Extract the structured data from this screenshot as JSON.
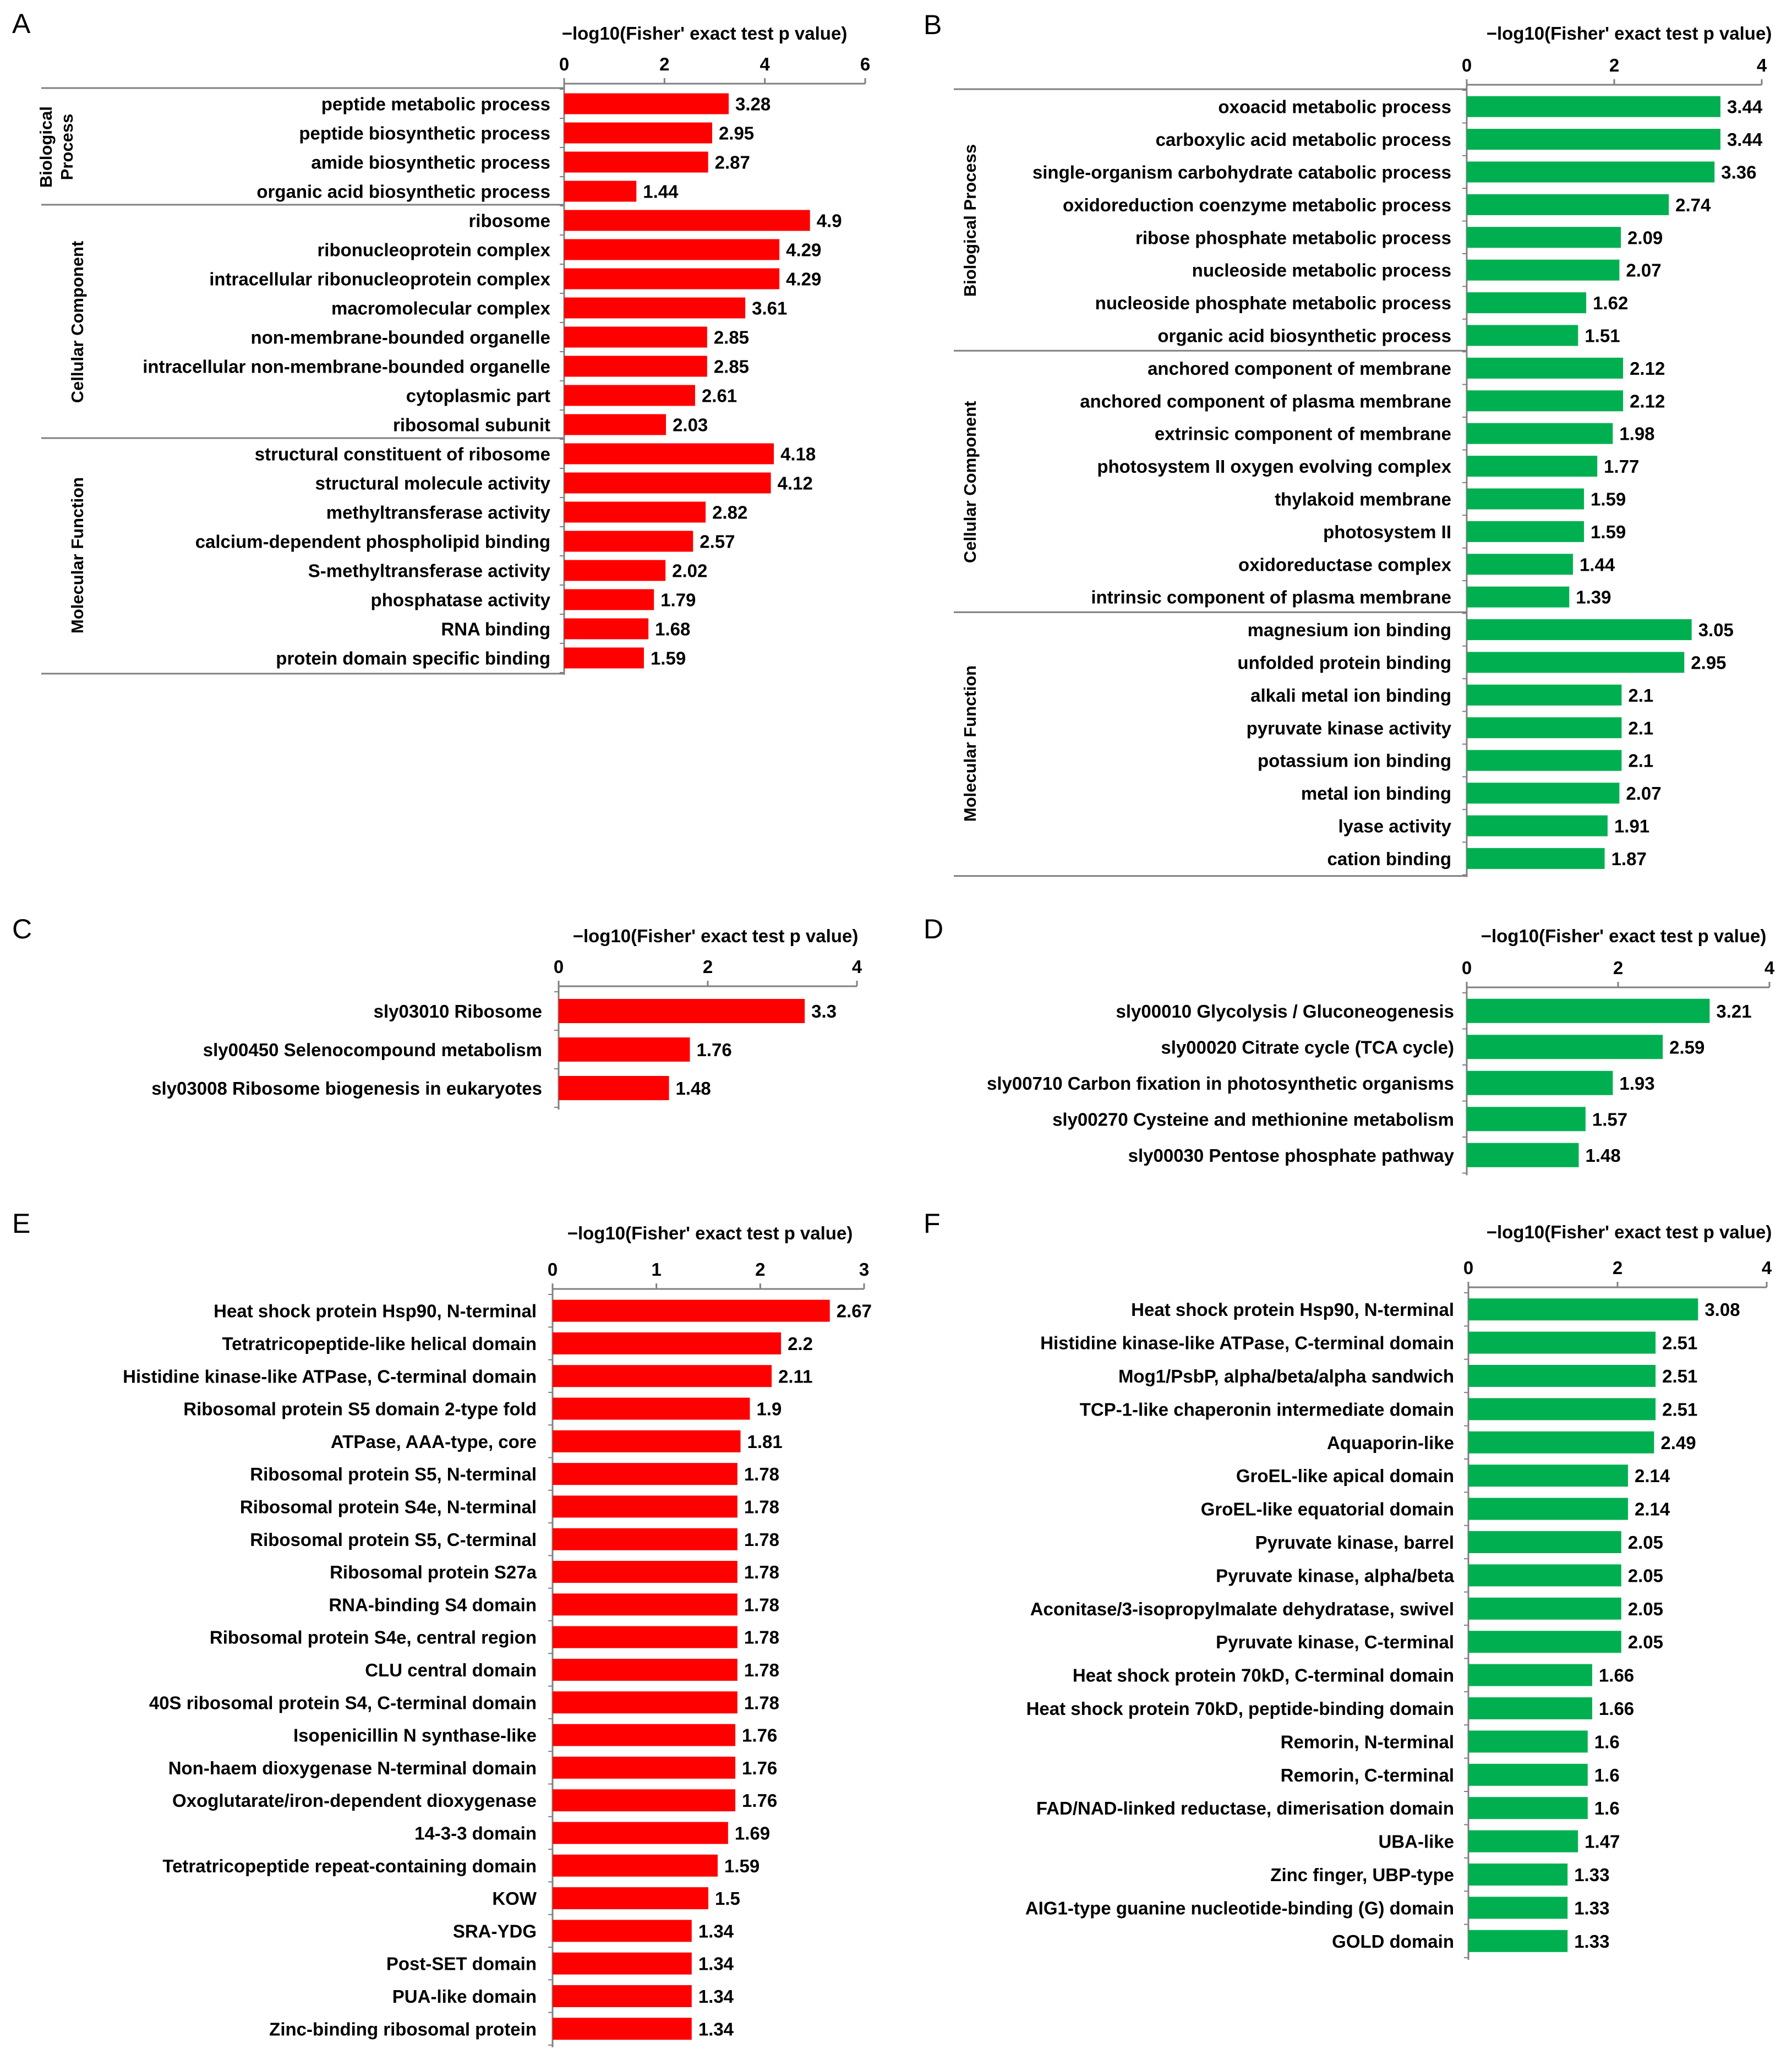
{
  "chart_data": [
    {
      "panel": "A",
      "type": "bar",
      "orientation": "horizontal",
      "xlabel": "−log10(Fisher' exact test p value)",
      "xlim": [
        0,
        6
      ],
      "xticks": [
        0,
        2,
        4,
        6
      ],
      "color": "#ff0000",
      "groups": [
        {
          "name": "Biological Process",
          "lines": [
            "Biological",
            "Process"
          ],
          "start": 0,
          "end": 3
        },
        {
          "name": "Cellular Component",
          "lines": [
            "Cellular Component"
          ],
          "start": 4,
          "end": 11
        },
        {
          "name": "Molecular Function",
          "lines": [
            "Molecular Function"
          ],
          "start": 12,
          "end": 19
        }
      ],
      "categories": [
        "peptide metabolic process",
        "peptide biosynthetic process",
        "amide biosynthetic process",
        "organic acid biosynthetic process",
        "ribosome",
        "ribonucleoprotein complex",
        "intracellular ribonucleoprotein complex",
        "macromolecular complex",
        "non-membrane-bounded organelle",
        "intracellular non-membrane-bounded organelle",
        "cytoplasmic part",
        "ribosomal subunit",
        "structural constituent of ribosome",
        "structural molecule activity",
        "methyltransferase activity",
        "calcium-dependent phospholipid binding",
        "S-methyltransferase activity",
        "phosphatase activity",
        "RNA binding",
        "protein domain specific binding"
      ],
      "values": [
        3.28,
        2.95,
        2.87,
        1.44,
        4.9,
        4.29,
        4.29,
        3.61,
        2.85,
        2.85,
        2.61,
        2.03,
        4.18,
        4.12,
        2.82,
        2.57,
        2.02,
        1.79,
        1.68,
        1.59
      ],
      "value_labels": [
        "3.28",
        "2.95",
        "2.87",
        "1.44",
        "4.9",
        "4.29",
        "4.29",
        "3.61",
        "2.85",
        "2.85",
        "2.61",
        "2.03",
        "4.18",
        "4.12",
        "2.82",
        "2.57",
        "2.02",
        "1.79",
        "1.68",
        "1.59"
      ]
    },
    {
      "panel": "B",
      "type": "bar",
      "orientation": "horizontal",
      "xlabel": "−log10(Fisher' exact test p value)",
      "xlim": [
        0,
        4
      ],
      "xticks": [
        0,
        2,
        4
      ],
      "color": "#00b050",
      "groups": [
        {
          "name": "Biological Process",
          "lines": [
            "Biological Process"
          ],
          "start": 0,
          "end": 7
        },
        {
          "name": "Cellular Component",
          "lines": [
            "Cellular Component"
          ],
          "start": 8,
          "end": 15
        },
        {
          "name": "Molecular Function",
          "lines": [
            "Molecular Function"
          ],
          "start": 16,
          "end": 23
        }
      ],
      "categories": [
        "oxoacid metabolic process",
        "carboxylic acid metabolic process",
        "single-organism carbohydrate catabolic process",
        "oxidoreduction coenzyme metabolic process",
        "ribose phosphate metabolic process",
        "nucleoside metabolic process",
        "nucleoside phosphate metabolic process",
        "organic acid biosynthetic process",
        "anchored component of membrane",
        "anchored component of plasma membrane",
        "extrinsic component of membrane",
        "photosystem II oxygen evolving complex",
        "thylakoid membrane",
        "photosystem II",
        "oxidoreductase complex",
        "intrinsic component of plasma membrane",
        "magnesium ion binding",
        "unfolded protein binding",
        "alkali metal ion binding",
        "pyruvate kinase activity",
        "potassium ion binding",
        "metal ion binding",
        "lyase activity",
        "cation binding"
      ],
      "values": [
        3.44,
        3.44,
        3.36,
        2.74,
        2.09,
        2.07,
        1.62,
        1.51,
        2.12,
        2.12,
        1.98,
        1.77,
        1.59,
        1.59,
        1.44,
        1.39,
        3.05,
        2.95,
        2.1,
        2.1,
        2.1,
        2.07,
        1.91,
        1.87
      ],
      "value_labels": [
        "3.44",
        "3.44",
        "3.36",
        "2.74",
        "2.09",
        "2.07",
        "1.62",
        "1.51",
        "2.12",
        "2.12",
        "1.98",
        "1.77",
        "1.59",
        "1.59",
        "1.44",
        "1.39",
        "3.05",
        "2.95",
        "2.1",
        "2.1",
        "2.1",
        "2.07",
        "1.91",
        "1.87"
      ]
    },
    {
      "panel": "C",
      "type": "bar",
      "orientation": "horizontal",
      "xlabel": "−log10(Fisher' exact test p value)",
      "xlim": [
        0,
        4
      ],
      "xticks": [
        0,
        2,
        4
      ],
      "color": "#ff0000",
      "groups": [],
      "categories": [
        "sly03010 Ribosome",
        "sly00450 Selenocompound metabolism",
        "sly03008 Ribosome biogenesis in eukaryotes"
      ],
      "values": [
        3.3,
        1.76,
        1.48
      ],
      "value_labels": [
        "3.3",
        "1.76",
        "1.48"
      ]
    },
    {
      "panel": "D",
      "type": "bar",
      "orientation": "horizontal",
      "xlabel": "−log10(Fisher' exact test p value)",
      "xlim": [
        0,
        4
      ],
      "xticks": [
        0,
        2,
        4
      ],
      "color": "#00b050",
      "groups": [],
      "categories": [
        "sly00010 Glycolysis / Gluconeogenesis",
        "sly00020 Citrate cycle (TCA cycle)",
        "sly00710 Carbon fixation in photosynthetic organisms",
        "sly00270 Cysteine and methionine metabolism",
        "sly00030 Pentose phosphate pathway"
      ],
      "values": [
        3.21,
        2.59,
        1.93,
        1.57,
        1.48
      ],
      "value_labels": [
        "3.21",
        "2.59",
        "1.93",
        "1.57",
        "1.48"
      ]
    },
    {
      "panel": "E",
      "type": "bar",
      "orientation": "horizontal",
      "xlabel": "−log10(Fisher' exact test p value)",
      "xlim": [
        0,
        3
      ],
      "xticks": [
        0,
        1,
        2,
        3
      ],
      "color": "#ff0000",
      "groups": [],
      "categories": [
        "Heat shock protein Hsp90, N-terminal",
        "Tetratricopeptide-like helical domain",
        "Histidine kinase-like ATPase, C-terminal domain",
        "Ribosomal protein S5 domain 2-type fold",
        "ATPase, AAA-type, core",
        "Ribosomal protein S5, N-terminal",
        "Ribosomal protein S4e, N-terminal",
        "Ribosomal protein S5, C-terminal",
        "Ribosomal protein S27a",
        "RNA-binding S4 domain",
        "Ribosomal protein S4e, central region",
        "CLU central domain",
        "40S ribosomal protein S4, C-terminal domain",
        "Isopenicillin N synthase-like",
        "Non-haem dioxygenase N-terminal domain",
        "Oxoglutarate/iron-dependent dioxygenase",
        "14-3-3 domain",
        "Tetratricopeptide repeat-containing domain",
        "KOW",
        "SRA-YDG",
        "Post-SET domain",
        "PUA-like domain",
        "Zinc-binding ribosomal protein"
      ],
      "values": [
        2.67,
        2.2,
        2.11,
        1.9,
        1.81,
        1.78,
        1.78,
        1.78,
        1.78,
        1.78,
        1.78,
        1.78,
        1.78,
        1.76,
        1.76,
        1.76,
        1.69,
        1.59,
        1.5,
        1.34,
        1.34,
        1.34,
        1.34
      ],
      "value_labels": [
        "2.67",
        "2.2",
        "2.11",
        "1.9",
        "1.81",
        "1.78",
        "1.78",
        "1.78",
        "1.78",
        "1.78",
        "1.78",
        "1.78",
        "1.78",
        "1.76",
        "1.76",
        "1.76",
        "1.69",
        "1.59",
        "1.5",
        "1.34",
        "1.34",
        "1.34",
        "1.34"
      ]
    },
    {
      "panel": "F",
      "type": "bar",
      "orientation": "horizontal",
      "xlabel": "−log10(Fisher' exact test p value)",
      "xlim": [
        0,
        4
      ],
      "xticks": [
        0,
        2,
        4
      ],
      "color": "#00b050",
      "groups": [],
      "categories": [
        "Heat shock protein Hsp90, N-terminal",
        "Histidine kinase-like ATPase, C-terminal domain",
        "Mog1/PsbP, alpha/beta/alpha sandwich",
        "TCP-1-like chaperonin intermediate domain",
        "Aquaporin-like",
        "GroEL-like apical domain",
        "GroEL-like equatorial domain",
        "Pyruvate kinase, barrel",
        "Pyruvate kinase, alpha/beta",
        "Aconitase/3-isopropylmalate dehydratase, swivel",
        "Pyruvate kinase, C-terminal",
        "Heat shock protein 70kD, C-terminal domain",
        "Heat shock protein 70kD, peptide-binding domain",
        "Remorin, N-terminal",
        "Remorin, C-terminal",
        "FAD/NAD-linked reductase, dimerisation domain",
        "UBA-like",
        "Zinc finger, UBP-type",
        "AIG1-type guanine nucleotide-binding (G) domain",
        "GOLD domain"
      ],
      "values": [
        3.08,
        2.51,
        2.51,
        2.51,
        2.49,
        2.14,
        2.14,
        2.05,
        2.05,
        2.05,
        2.05,
        1.66,
        1.66,
        1.6,
        1.6,
        1.6,
        1.47,
        1.33,
        1.33,
        1.33
      ],
      "value_labels": [
        "3.08",
        "2.51",
        "2.51",
        "2.51",
        "2.49",
        "2.14",
        "2.14",
        "2.05",
        "2.05",
        "2.05",
        "2.05",
        "1.66",
        "1.66",
        "1.6",
        "1.6",
        "1.6",
        "1.47",
        "1.33",
        "1.33",
        "1.33"
      ]
    }
  ]
}
